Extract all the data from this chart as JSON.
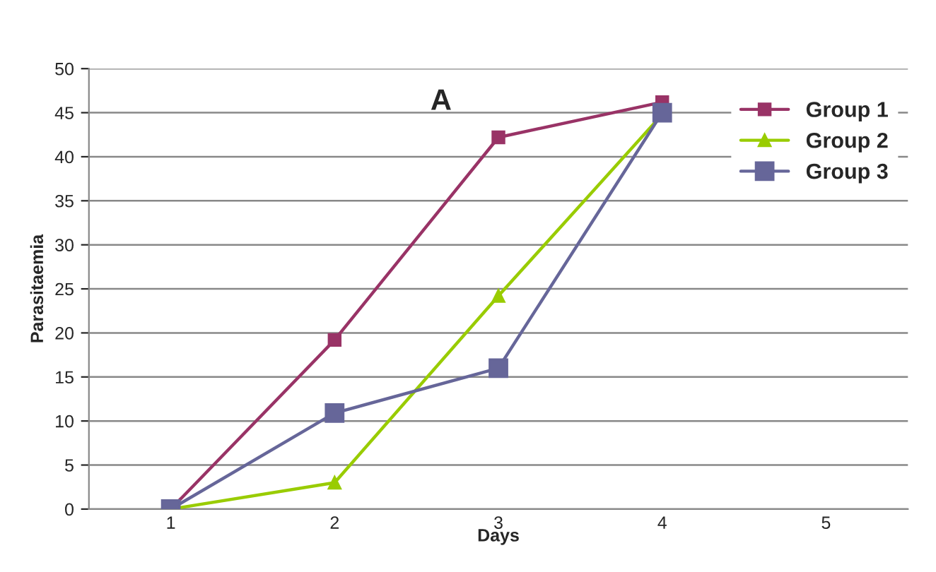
{
  "chart_data": {
    "type": "line",
    "title": "A",
    "xlabel": "Days",
    "ylabel": "Parasitaemia",
    "categories": [
      "1",
      "2",
      "3",
      "4",
      "5"
    ],
    "series": [
      {
        "name": "Group 1",
        "color": "#993366",
        "marker": "square",
        "values": [
          0,
          19.2,
          42.2,
          46.2,
          null
        ]
      },
      {
        "name": "Group 2",
        "color": "#99cc00",
        "marker": "triangle",
        "values": [
          0,
          3,
          24.2,
          44.8,
          null
        ]
      },
      {
        "name": "Group 3",
        "color": "#666699",
        "marker": "square",
        "values": [
          0,
          10.9,
          16,
          45,
          null
        ]
      }
    ],
    "ylim": [
      0,
      50
    ],
    "yticks": [
      0,
      5,
      10,
      15,
      20,
      25,
      30,
      35,
      40,
      45,
      50
    ],
    "grid": "y",
    "legend": "top right"
  }
}
